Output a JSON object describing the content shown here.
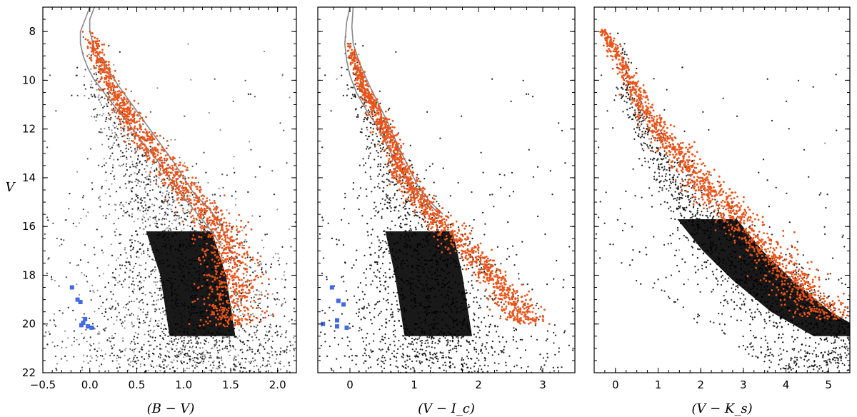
{
  "figure": {
    "shared_ylabel": "V"
  },
  "chart_data": [
    {
      "type": "scatter",
      "xlabel": "(B − V)",
      "ylabel": "V",
      "xlim": [
        -0.5,
        2.2
      ],
      "ylim": [
        22,
        7
      ],
      "y_inverted": true,
      "xticks": [
        -0.5,
        0.0,
        0.5,
        1.0,
        1.5,
        2.0
      ],
      "xtick_labels": [
        "−0.5",
        "0.0",
        "0.5",
        "1.0",
        "1.5",
        "2.0"
      ],
      "yticks": [
        8,
        10,
        12,
        14,
        16,
        18,
        20,
        22
      ],
      "ytick_labels": [
        "8",
        "10",
        "12",
        "14",
        "16",
        "18",
        "20",
        "22"
      ],
      "series": [
        {
          "role": "field",
          "color": "#000000",
          "description_only": true,
          "dense_region": {
            "x_range": [
              0.6,
              1.5
            ],
            "y_range": [
              15,
              22
            ]
          },
          "ridge": [
            [
              0.0,
              9.5
            ],
            [
              0.25,
              11.5
            ],
            [
              0.5,
              13.2
            ],
            [
              0.75,
              14.8
            ],
            [
              0.95,
              16.2
            ],
            [
              1.1,
              18.0
            ],
            [
              1.2,
              20.5
            ]
          ]
        },
        {
          "role": "members",
          "color": "#e8541a",
          "sequence": [
            [
              0.0,
              8.0
            ],
            [
              0.1,
              9.0
            ],
            [
              0.2,
              10.0
            ],
            [
              0.35,
              11.0
            ],
            [
              0.5,
              12.0
            ],
            [
              0.7,
              13.0
            ],
            [
              0.9,
              14.0
            ],
            [
              1.15,
              15.0
            ],
            [
              1.35,
              16.0
            ],
            [
              1.45,
              17.0
            ],
            [
              1.48,
              18.0
            ],
            [
              1.49,
              19.0
            ],
            [
              1.49,
              20.1
            ]
          ]
        },
        {
          "role": "blue",
          "color": "#4169e1",
          "points": [
            [
              -0.19,
              18.5
            ],
            [
              -0.13,
              19.0
            ],
            [
              -0.1,
              19.1
            ],
            [
              -0.07,
              19.95
            ],
            [
              -0.05,
              19.8
            ],
            [
              -0.02,
              20.1
            ],
            [
              0.02,
              20.15
            ],
            [
              -0.09,
              20.05
            ]
          ]
        }
      ],
      "isochrone": {
        "color": "#888888",
        "left": [
          [
            0.0,
            7.0
          ],
          [
            -0.05,
            7.5
          ],
          [
            -0.1,
            8.0
          ],
          [
            -0.1,
            8.5
          ],
          [
            -0.07,
            9.0
          ],
          [
            -0.02,
            9.5
          ],
          [
            0.05,
            10.0
          ],
          [
            0.15,
            10.5
          ],
          [
            0.25,
            11.0
          ],
          [
            0.4,
            11.7
          ],
          [
            0.55,
            12.5
          ],
          [
            0.7,
            13.2
          ],
          [
            0.85,
            14.0
          ],
          [
            1.0,
            14.8
          ],
          [
            1.15,
            15.5
          ],
          [
            1.3,
            16.2
          ],
          [
            1.4,
            16.8
          ]
        ],
        "right": [
          [
            0.05,
            7.0
          ],
          [
            0.0,
            7.5
          ],
          [
            0.0,
            8.0
          ],
          [
            0.05,
            8.7
          ],
          [
            0.15,
            9.3
          ],
          [
            0.3,
            10.2
          ],
          [
            0.45,
            11.0
          ],
          [
            0.6,
            11.8
          ],
          [
            0.75,
            12.6
          ],
          [
            0.9,
            13.4
          ],
          [
            1.0,
            14.0
          ],
          [
            1.1,
            14.6
          ],
          [
            1.25,
            15.2
          ],
          [
            1.38,
            15.8
          ],
          [
            1.45,
            16.5
          ]
        ]
      }
    },
    {
      "type": "scatter",
      "xlabel": "(V − I_c)",
      "ylabel": "",
      "xlim": [
        -0.5,
        3.5
      ],
      "ylim": [
        22,
        7
      ],
      "y_inverted": true,
      "xticks": [
        0,
        1,
        2,
        3
      ],
      "xtick_labels": [
        "0",
        "1",
        "2",
        "3"
      ],
      "yticks": [
        8,
        10,
        12,
        14,
        16,
        18,
        20,
        22
      ],
      "series": [
        {
          "role": "field",
          "color": "#000000",
          "ridge": [
            [
              0.0,
              9.5
            ],
            [
              0.3,
              11.5
            ],
            [
              0.6,
              13.2
            ],
            [
              0.85,
              14.8
            ],
            [
              1.05,
              16.2
            ],
            [
              1.2,
              18.0
            ],
            [
              1.35,
              20.5
            ]
          ]
        },
        {
          "role": "members",
          "color": "#e8541a",
          "sequence": [
            [
              0.0,
              8.5
            ],
            [
              0.1,
              9.5
            ],
            [
              0.25,
              10.5
            ],
            [
              0.45,
              11.5
            ],
            [
              0.6,
              12.3
            ],
            [
              0.7,
              13.0
            ],
            [
              0.85,
              14.0
            ],
            [
              1.1,
              15.0
            ],
            [
              1.45,
              16.0
            ],
            [
              1.85,
              17.0
            ],
            [
              2.2,
              18.0
            ],
            [
              2.5,
              19.0
            ],
            [
              2.75,
              20.0
            ]
          ]
        },
        {
          "role": "blue",
          "color": "#4169e1",
          "points": [
            [
              -0.28,
              18.5
            ],
            [
              -0.18,
              19.05
            ],
            [
              -0.1,
              19.2
            ],
            [
              -0.42,
              20.0
            ],
            [
              -0.2,
              19.85
            ],
            [
              -0.2,
              20.1
            ],
            [
              -0.05,
              20.15
            ]
          ]
        }
      ],
      "isochrone": {
        "color": "#888888",
        "left": [
          [
            0.0,
            7.0
          ],
          [
            -0.05,
            7.6
          ],
          [
            -0.08,
            8.5
          ],
          [
            -0.05,
            9.2
          ],
          [
            0.0,
            9.8
          ],
          [
            0.1,
            10.5
          ],
          [
            0.25,
            11.2
          ],
          [
            0.45,
            12.0
          ],
          [
            0.6,
            12.8
          ],
          [
            0.75,
            13.5
          ],
          [
            0.95,
            14.3
          ],
          [
            1.2,
            15.0
          ],
          [
            1.4,
            15.5
          ]
        ],
        "right": [
          [
            0.05,
            7.0
          ],
          [
            0.03,
            7.8
          ],
          [
            0.05,
            8.5
          ],
          [
            0.15,
            9.3
          ],
          [
            0.3,
            10.2
          ],
          [
            0.45,
            11.0
          ],
          [
            0.6,
            11.8
          ],
          [
            0.75,
            12.7
          ],
          [
            0.9,
            13.5
          ],
          [
            1.05,
            14.3
          ],
          [
            1.25,
            15.0
          ],
          [
            1.45,
            15.5
          ]
        ]
      }
    },
    {
      "type": "scatter",
      "xlabel": "(V − K_s)",
      "ylabel": "",
      "xlim": [
        -0.5,
        5.5
      ],
      "ylim": [
        22,
        7
      ],
      "y_inverted": true,
      "xticks": [
        0,
        1,
        2,
        3,
        4,
        5
      ],
      "xtick_labels": [
        "0",
        "1",
        "2",
        "3",
        "4",
        "5"
      ],
      "yticks": [
        8,
        10,
        12,
        14,
        16,
        18,
        20,
        22
      ],
      "series": [
        {
          "role": "field",
          "color": "#000000",
          "ridge": [
            [
              0.2,
              10.5
            ],
            [
              0.8,
              12.5
            ],
            [
              1.5,
              14.3
            ],
            [
              2.1,
              15.7
            ],
            [
              2.7,
              17.0
            ],
            [
              3.4,
              18.2
            ],
            [
              4.3,
              19.5
            ],
            [
              5.3,
              20.5
            ]
          ]
        },
        {
          "role": "members",
          "color": "#e8541a",
          "sequence": [
            [
              -0.3,
              7.9
            ],
            [
              0.05,
              9.0
            ],
            [
              0.35,
              10.0
            ],
            [
              0.8,
              11.5
            ],
            [
              1.3,
              12.7
            ],
            [
              1.9,
              14.0
            ],
            [
              2.5,
              15.0
            ],
            [
              3.0,
              16.0
            ],
            [
              3.5,
              17.0
            ],
            [
              4.1,
              18.0
            ],
            [
              4.6,
              19.0
            ],
            [
              5.1,
              19.8
            ]
          ]
        }
      ]
    }
  ]
}
